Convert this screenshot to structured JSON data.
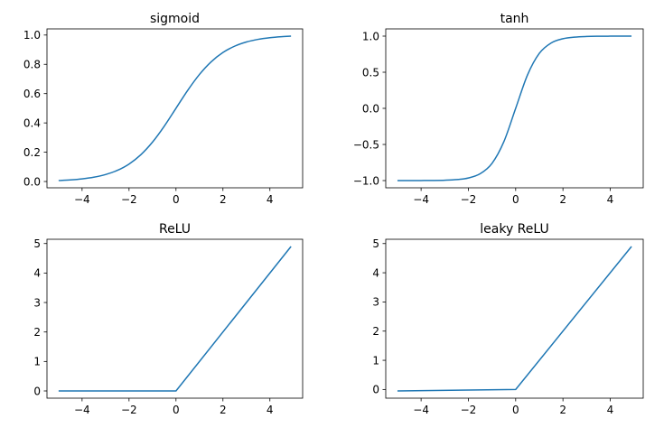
{
  "chart_data": [
    {
      "type": "line",
      "title": "sigmoid",
      "color": "#1f77b4",
      "x": [
        -5,
        -4.5,
        -4,
        -3.5,
        -3,
        -2.5,
        -2,
        -1.5,
        -1,
        -0.5,
        0,
        0.5,
        1,
        1.5,
        2,
        2.5,
        3,
        3.5,
        4,
        4.5,
        4.9
      ],
      "y": [
        0.0067,
        0.011,
        0.018,
        0.0293,
        0.0474,
        0.0759,
        0.1192,
        0.1824,
        0.2689,
        0.3775,
        0.5,
        0.6225,
        0.7311,
        0.8176,
        0.8808,
        0.9241,
        0.9526,
        0.9707,
        0.982,
        0.989,
        0.9926
      ],
      "xlim": [
        -5.495,
        5.395
      ],
      "ylim": [
        -0.043,
        1.042
      ],
      "xticks": [
        -4,
        -2,
        0,
        2,
        4
      ],
      "xtick_labels": [
        "−4",
        "−2",
        "0",
        "2",
        "4"
      ],
      "yticks": [
        0,
        0.2,
        0.4,
        0.6,
        0.8,
        1.0
      ],
      "ytick_labels": [
        "0.0",
        "0.2",
        "0.4",
        "0.6",
        "0.8",
        "1.0"
      ]
    },
    {
      "type": "line",
      "title": "tanh",
      "color": "#1f77b4",
      "x": [
        -5,
        -4.5,
        -4,
        -3.5,
        -3,
        -2.5,
        -2,
        -1.5,
        -1,
        -0.5,
        0,
        0.5,
        1,
        1.5,
        2,
        2.5,
        3,
        3.5,
        4,
        4.5,
        4.9
      ],
      "y": [
        -0.9999,
        -0.9998,
        -0.9993,
        -0.9982,
        -0.9951,
        -0.9866,
        -0.964,
        -0.9051,
        -0.7616,
        -0.4621,
        0,
        0.4621,
        0.7616,
        0.9051,
        0.964,
        0.9866,
        0.9951,
        0.9982,
        0.9993,
        0.9998,
        0.9999
      ],
      "xlim": [
        -5.495,
        5.395
      ],
      "ylim": [
        -1.1,
        1.1
      ],
      "xticks": [
        -4,
        -2,
        0,
        2,
        4
      ],
      "xtick_labels": [
        "−4",
        "−2",
        "0",
        "2",
        "4"
      ],
      "yticks": [
        -1,
        -0.5,
        0,
        0.5,
        1
      ],
      "ytick_labels": [
        "−1.0",
        "−0.5",
        "0.0",
        "0.5",
        "1.0"
      ]
    },
    {
      "type": "line",
      "title": "ReLU",
      "color": "#1f77b4",
      "x": [
        -5,
        0,
        4.9
      ],
      "y": [
        0,
        0,
        4.9
      ],
      "xlim": [
        -5.495,
        5.395
      ],
      "ylim": [
        -0.245,
        5.145
      ],
      "xticks": [
        -4,
        -2,
        0,
        2,
        4
      ],
      "xtick_labels": [
        "−4",
        "−2",
        "0",
        "2",
        "4"
      ],
      "yticks": [
        0,
        1,
        2,
        3,
        4,
        5
      ],
      "ytick_labels": [
        "0",
        "1",
        "2",
        "3",
        "4",
        "5"
      ]
    },
    {
      "type": "line",
      "title": "leaky ReLU",
      "color": "#1f77b4",
      "x": [
        -5,
        0,
        4.9
      ],
      "y": [
        -0.05,
        0,
        4.9
      ],
      "xlim": [
        -5.495,
        5.395
      ],
      "ylim": [
        -0.2975,
        5.1475
      ],
      "xticks": [
        -4,
        -2,
        0,
        2,
        4
      ],
      "xtick_labels": [
        "−4",
        "−2",
        "0",
        "2",
        "4"
      ],
      "yticks": [
        0,
        1,
        2,
        3,
        4,
        5
      ],
      "ytick_labels": [
        "0",
        "1",
        "2",
        "3",
        "4",
        "5"
      ]
    }
  ]
}
